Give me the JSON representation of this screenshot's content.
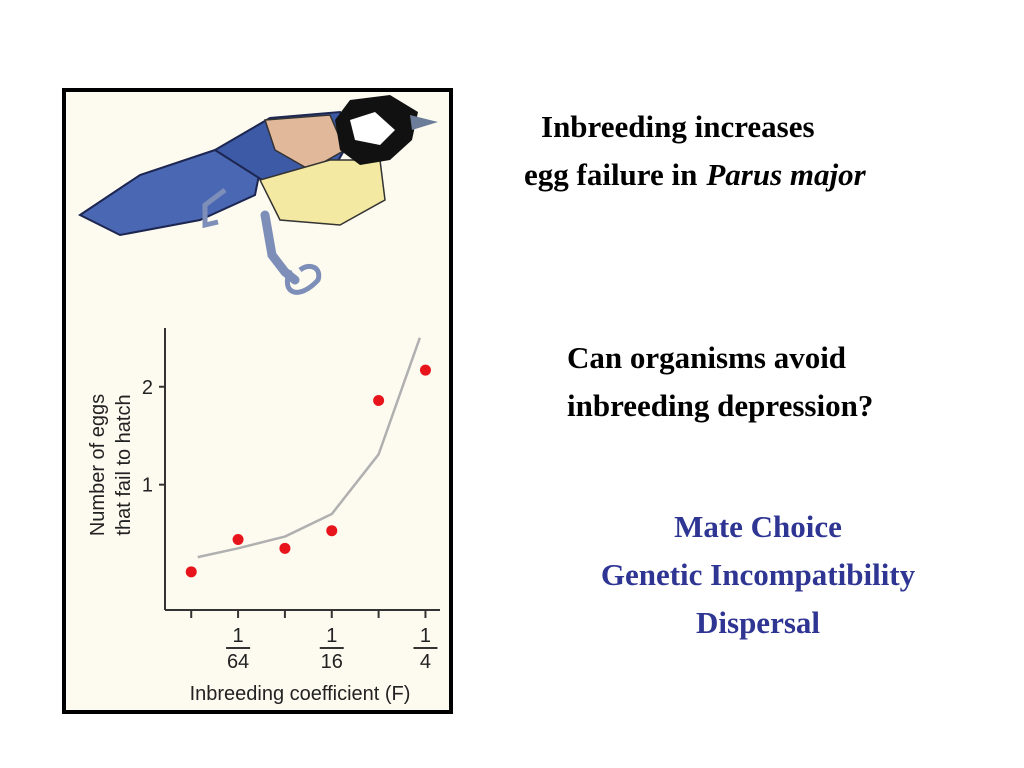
{
  "slide": {
    "heading_line1": "Inbreeding increases",
    "heading_line2": "egg failure in",
    "heading_species": "Parus major",
    "question": [
      "Can organisms avoid",
      "inbreeding depression?"
    ],
    "mechanisms": [
      "Mate Choice",
      "Genetic Incompatibility",
      "Dispersal"
    ]
  },
  "chart_data": {
    "type": "scatter",
    "y_label": [
      "Number of eggs",
      "that fail to hatch"
    ],
    "x_label": "Inbreeding coefficient (F)",
    "x": [
      0.0078125,
      0.015625,
      0.03125,
      0.0625,
      0.125,
      0.25
    ],
    "values": [
      0.11,
      0.44,
      0.35,
      0.53,
      1.86,
      2.17
    ],
    "color": "#e8141b",
    "fit_line": {
      "x": [
        0.0086,
        0.015625,
        0.03125,
        0.0625,
        0.125,
        0.23
      ],
      "values": [
        0.26,
        0.35,
        0.47,
        0.7,
        1.31,
        2.5
      ],
      "color": "#b0b0b0"
    },
    "xscale": "log",
    "xlim": [
      0.0053,
      0.31
    ],
    "ylim": [
      -0.28,
      2.6
    ],
    "xticks": [
      {
        "value": 0.015625,
        "label": "1/64"
      },
      {
        "value": 0.0625,
        "label": "1/16"
      },
      {
        "value": 0.25,
        "label": "1/4"
      }
    ],
    "xminor_ticks": [
      0.0078125,
      0.03125,
      0.125
    ],
    "yticks": [
      1,
      2
    ]
  }
}
